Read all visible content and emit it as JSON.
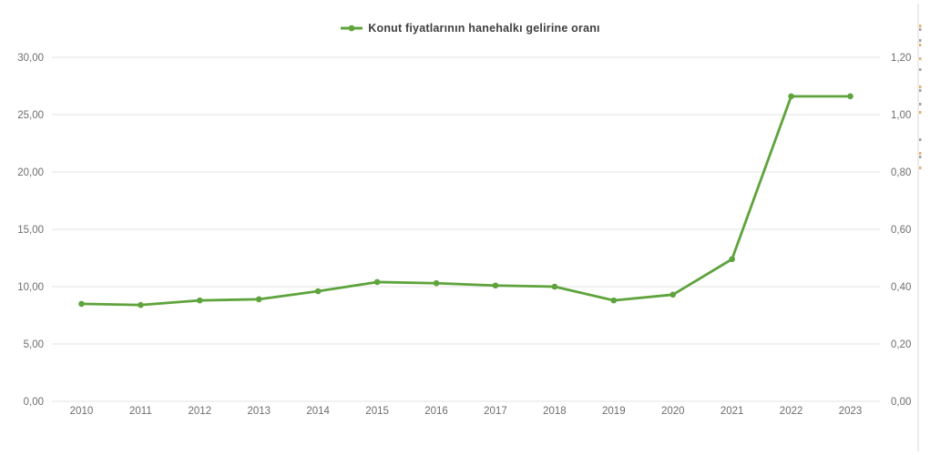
{
  "chart_data": {
    "type": "line",
    "title": "Konut fiyatlarının hanehalkı gelirine oranı",
    "legend": {
      "position": "top"
    },
    "grid": true,
    "categories": [
      "2010",
      "2011",
      "2012",
      "2013",
      "2014",
      "2015",
      "2016",
      "2017",
      "2018",
      "2019",
      "2020",
      "2021",
      "2022",
      "2023"
    ],
    "series": [
      {
        "name": "Konut fiyatlarının hanehalkı gelirine oranı",
        "color": "#5EA33C",
        "axis": "left",
        "values": [
          8.5,
          8.4,
          8.8,
          8.9,
          9.6,
          10.4,
          10.3,
          10.1,
          10.0,
          8.8,
          9.3,
          12.4,
          26.6,
          26.6
        ]
      }
    ],
    "left_axis": {
      "min": 0,
      "max": 30,
      "step": 5,
      "tick_labels": [
        "0,00",
        "5,00",
        "10,00",
        "15,00",
        "20,00",
        "25,00",
        "30,00"
      ]
    },
    "right_axis": {
      "min": 0,
      "max": 1.2,
      "step": 0.2,
      "tick_labels": [
        "0,00",
        "0,20",
        "0,40",
        "0,60",
        "0,80",
        "1,00",
        "1,20"
      ]
    }
  },
  "colors": {
    "series_green": "#5EA33C",
    "gridline": "#E3E3E3",
    "tick_text": "#6E6E6E",
    "legend_text": "#3F3F3F",
    "right_divider": "#D9D9D9",
    "artifact_orange": "#DB9C49",
    "artifact_gray": "#8A8A8A"
  }
}
